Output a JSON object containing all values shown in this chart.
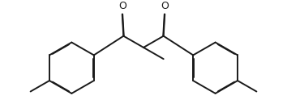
{
  "bg_color": "#ffffff",
  "line_color": "#1a1a1a",
  "line_width": 1.4,
  "dbo_ring": 0.018,
  "dbo_carbonyl": 0.013,
  "O_fontsize": 9,
  "figsize": [
    3.54,
    1.34
  ],
  "dpi": 100,
  "xlim": [
    0,
    10
  ],
  "ylim": [
    0,
    3.8
  ]
}
